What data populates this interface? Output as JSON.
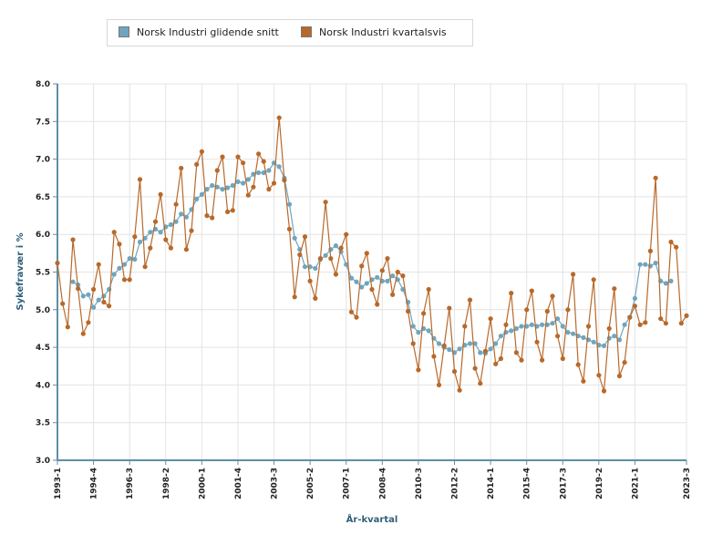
{
  "legend": {
    "series1_label": "Norsk Industri glidende snitt",
    "series2_label": "Norsk Industri kvartalsvis"
  },
  "colors": {
    "series1": "#6fa5be",
    "series2": "#b8692a",
    "axis": "#5f8fa5",
    "grid": "#e4e4e4"
  },
  "chart_data": {
    "type": "line",
    "xlabel": "År-kvartal",
    "ylabel": "Sykefravær i %",
    "ylim": [
      3.0,
      8.0
    ],
    "yticks": [
      "3.0",
      "3.5",
      "4.0",
      "4.5",
      "5.0",
      "5.5",
      "6.0",
      "6.5",
      "7.0",
      "7.5",
      "8.0"
    ],
    "grid": true,
    "legend_position": "top",
    "x_start": "1993-1",
    "x_end": "2023-3",
    "xtick_labels": [
      "1993-1",
      "1994-4",
      "1996-3",
      "1998-2",
      "2000-1",
      "2001-4",
      "2003-3",
      "2005-2",
      "2007-1",
      "2008-4",
      "2010-3",
      "2012-2",
      "2014-1",
      "2015-4",
      "2017-3",
      "2019-2",
      "2021-1",
      "2023-3"
    ],
    "series": [
      {
        "name": "Norsk Industri glidende snitt",
        "start": "1993-4",
        "values": [
          5.37,
          5.33,
          5.18,
          5.2,
          5.03,
          5.13,
          5.18,
          5.27,
          5.47,
          5.55,
          5.6,
          5.68,
          5.67,
          5.9,
          5.95,
          6.03,
          6.07,
          6.03,
          6.1,
          6.13,
          6.17,
          6.27,
          6.23,
          6.33,
          6.47,
          6.53,
          6.6,
          6.65,
          6.63,
          6.6,
          6.62,
          6.65,
          6.7,
          6.68,
          6.73,
          6.8,
          6.82,
          6.82,
          6.85,
          6.95,
          6.9,
          6.75,
          6.4,
          5.95,
          5.8,
          5.57,
          5.57,
          5.55,
          5.67,
          5.72,
          5.8,
          5.85,
          5.77,
          5.6,
          5.42,
          5.37,
          5.3,
          5.35,
          5.4,
          5.43,
          5.38,
          5.38,
          5.45,
          5.4,
          5.27,
          5.1,
          4.78,
          4.7,
          4.75,
          4.72,
          4.62,
          4.55,
          4.5,
          4.47,
          4.43,
          4.48,
          4.53,
          4.55,
          4.55,
          4.43,
          4.42,
          4.48,
          4.55,
          4.65,
          4.7,
          4.72,
          4.75,
          4.78,
          4.78,
          4.8,
          4.78,
          4.8,
          4.8,
          4.82,
          4.88,
          4.78,
          4.7,
          4.68,
          4.65,
          4.63,
          4.6,
          4.57,
          4.53,
          4.52,
          4.62,
          4.65,
          4.6,
          4.8,
          4.9,
          5.15,
          5.6,
          5.6,
          5.58,
          5.62,
          5.38,
          5.35,
          5.38
        ]
      },
      {
        "name": "Norsk Industri kvartalsvis",
        "start": "1993-1",
        "values": [
          5.62,
          5.08,
          4.77,
          5.93,
          5.28,
          4.68,
          4.83,
          5.27,
          5.6,
          5.1,
          5.05,
          6.03,
          5.87,
          5.4,
          5.4,
          5.97,
          6.73,
          5.57,
          5.82,
          6.17,
          6.53,
          5.93,
          5.82,
          6.4,
          6.88,
          5.8,
          6.05,
          6.93,
          7.1,
          6.25,
          6.22,
          6.85,
          7.03,
          6.3,
          6.32,
          7.03,
          6.95,
          6.52,
          6.63,
          7.07,
          6.97,
          6.6,
          6.68,
          7.55,
          6.72,
          6.07,
          5.17,
          5.73,
          5.97,
          5.38,
          5.15,
          5.68,
          6.43,
          5.68,
          5.47,
          5.82,
          6.0,
          4.97,
          4.9,
          5.58,
          5.75,
          5.27,
          5.07,
          5.52,
          5.68,
          5.2,
          5.5,
          5.45,
          4.98,
          4.55,
          4.2,
          4.95,
          5.27,
          4.38,
          4.0,
          4.52,
          5.02,
          4.18,
          3.93,
          4.78,
          5.13,
          4.22,
          4.02,
          4.45,
          4.88,
          4.28,
          4.35,
          4.8,
          5.22,
          4.43,
          4.33,
          5.0,
          5.25,
          4.57,
          4.33,
          4.98,
          5.18,
          4.65,
          4.35,
          5.0,
          5.47,
          4.27,
          4.05,
          4.78,
          5.4,
          4.13,
          3.92,
          4.75,
          5.28,
          4.12,
          4.3,
          4.9,
          5.05,
          4.8,
          4.83,
          5.78,
          6.75,
          4.88,
          4.82,
          5.9,
          5.83,
          4.82,
          4.92
        ]
      }
    ]
  }
}
